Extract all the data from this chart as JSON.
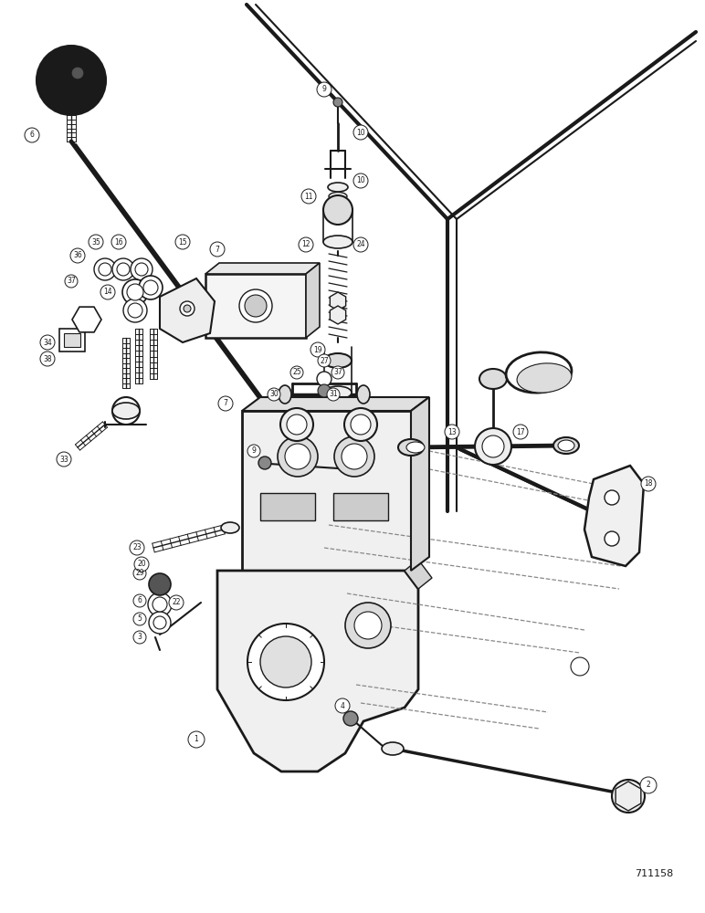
{
  "figure_number": "711158",
  "background_color": "#ffffff",
  "figsize": [
    7.72,
    10.0
  ],
  "dpi": 100,
  "line_color": "#1a1a1a",
  "gray_color": "#888888"
}
